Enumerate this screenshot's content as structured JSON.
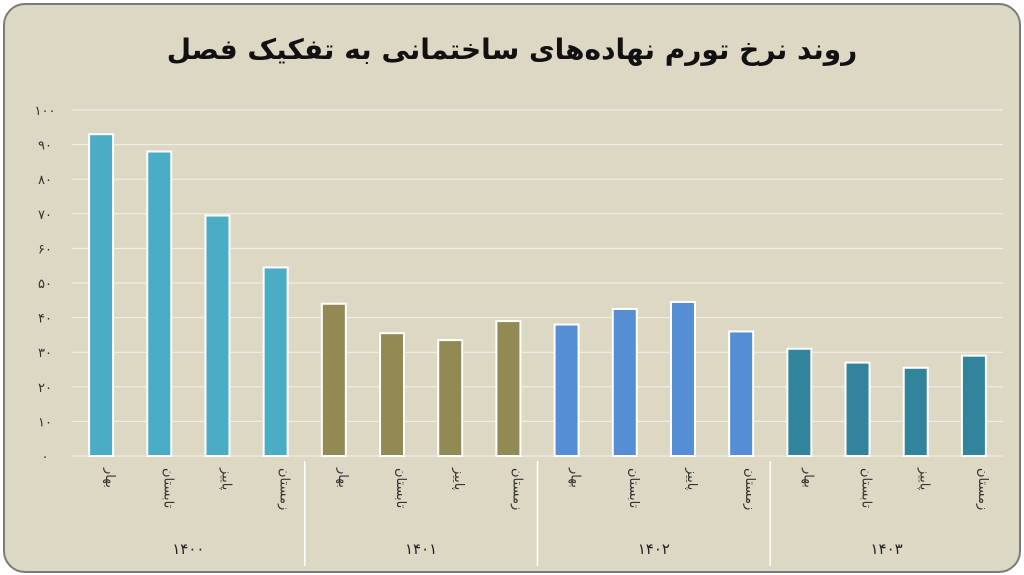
{
  "chart_data": {
    "type": "bar",
    "title": "روند نرخ تورم نهاده‌های ساختمانی به تفکیک فصل",
    "xlabel": "",
    "ylabel": "",
    "ylim": [
      0,
      100
    ],
    "yticks": [
      {
        "value": 0,
        "label": "۰"
      },
      {
        "value": 10,
        "label": "۱۰"
      },
      {
        "value": 20,
        "label": "۲۰"
      },
      {
        "value": 30,
        "label": "۳۰"
      },
      {
        "value": 40,
        "label": "۴۰"
      },
      {
        "value": 50,
        "label": "۵۰"
      },
      {
        "value": 60,
        "label": "۶۰"
      },
      {
        "value": 70,
        "label": "۷۰"
      },
      {
        "value": 80,
        "label": "۸۰"
      },
      {
        "value": 90,
        "label": "۹۰"
      },
      {
        "value": 100,
        "label": "۱۰۰"
      }
    ],
    "grid": true,
    "groups": [
      {
        "label": "۱۴۰۰",
        "color": "#4bacc6",
        "bars": [
          {
            "season": "بهار",
            "value": 93
          },
          {
            "season": "تابستان",
            "value": 88
          },
          {
            "season": "پاییز",
            "value": 69.5
          },
          {
            "season": "زمستان",
            "value": 54.5
          }
        ]
      },
      {
        "label": "۱۴۰۱",
        "color": "#938953",
        "bars": [
          {
            "season": "بهار",
            "value": 44
          },
          {
            "season": "تابستان",
            "value": 35.5
          },
          {
            "season": "پاییز",
            "value": 33.5
          },
          {
            "season": "زمستان",
            "value": 39
          }
        ]
      },
      {
        "label": "۱۴۰۲",
        "color": "#558ed5",
        "bars": [
          {
            "season": "بهار",
            "value": 38
          },
          {
            "season": "تابستان",
            "value": 42.5
          },
          {
            "season": "پاییز",
            "value": 44.5
          },
          {
            "season": "زمستان",
            "value": 36
          }
        ]
      },
      {
        "label": "۱۴۰۳",
        "color": "#31849b",
        "bars": [
          {
            "season": "بهار",
            "value": 31
          },
          {
            "season": "تابستان",
            "value": 27
          },
          {
            "season": "پاییز",
            "value": 25.5
          },
          {
            "season": "زمستان",
            "value": 29
          }
        ]
      }
    ]
  }
}
